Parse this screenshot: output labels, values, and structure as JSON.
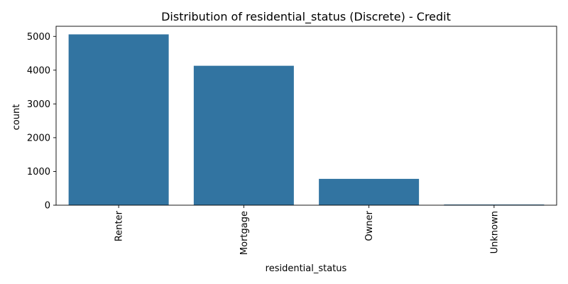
{
  "chart_data": {
    "type": "bar",
    "title": "Distribution of residential_status (Discrete) - Credit",
    "xlabel": "residential_status",
    "ylabel": "count",
    "categories": [
      "Renter",
      "Mortgage",
      "Owner",
      "Unknown"
    ],
    "values": [
      5060,
      4130,
      780,
      20
    ],
    "ylim": [
      0,
      5300
    ],
    "yticks": [
      0,
      1000,
      2000,
      3000,
      4000,
      5000
    ],
    "ytick_labels": [
      "0",
      "1000",
      "2000",
      "3000",
      "4000",
      "5000"
    ],
    "bar_color": "#3274a1",
    "grid": false,
    "legend": "none"
  }
}
